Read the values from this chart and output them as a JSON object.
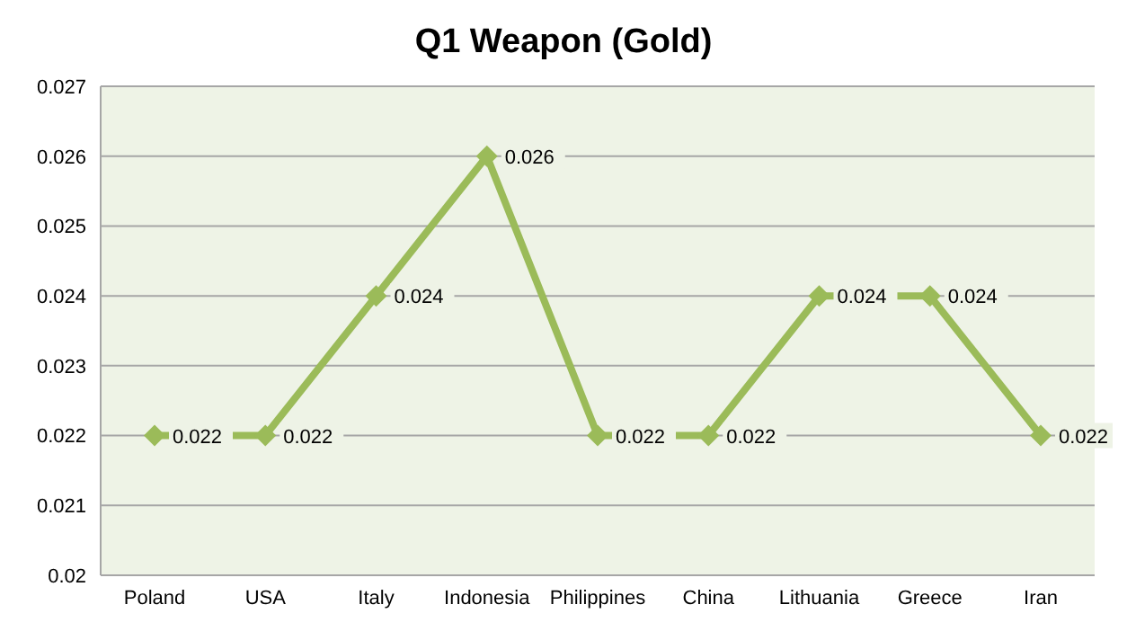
{
  "chart_data": {
    "type": "line",
    "title": "Q1 Weapon (Gold)",
    "categories": [
      "Poland",
      "USA",
      "Italy",
      "Indonesia",
      "Philippines",
      "China",
      "Lithuania",
      "Greece",
      "Iran"
    ],
    "series": [
      {
        "color": "#9bbb59",
        "values": [
          0.022,
          0.022,
          0.024,
          0.026,
          0.022,
          0.022,
          0.024,
          0.024,
          0.022
        ]
      }
    ],
    "ylim": [
      0.02,
      0.027
    ],
    "yticks": [
      0.02,
      0.021,
      0.022,
      0.023,
      0.024,
      0.025,
      0.026,
      0.027
    ],
    "grid": "y",
    "legend": false,
    "marker": "diamond",
    "line_style": "solid",
    "data_labels": true
  }
}
